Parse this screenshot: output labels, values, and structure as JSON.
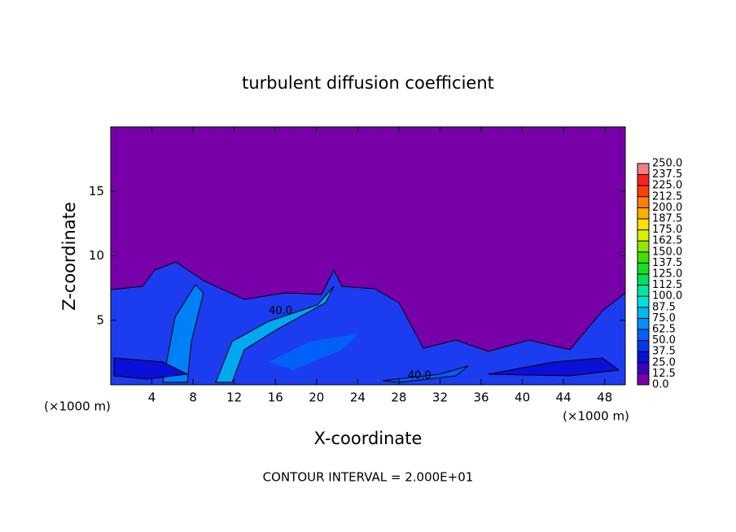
{
  "chart_data": {
    "type": "contour",
    "title": "turbulent diffusion coefficient",
    "xlabel": "X-coordinate",
    "ylabel": "Z-coordinate",
    "x_unit": "(×1000 m)",
    "x_unit_right": "(×1000 m)",
    "note": "CONTOUR INTERVAL = 2.000E+01",
    "xlim": [
      0,
      50
    ],
    "ylim": [
      0,
      20
    ],
    "xticks": [
      4,
      8,
      12,
      16,
      20,
      24,
      28,
      32,
      36,
      40,
      44,
      48
    ],
    "yticks": [
      5,
      10,
      15
    ],
    "contour_labels": {
      "values": [
        40,
        40
      ],
      "value_labels": [
        "40.0",
        "40.0"
      ]
    },
    "colorbar": {
      "levels": [
        {
          "value": 0,
          "label": "0.0"
        },
        {
          "value": 12.5,
          "label": "12.5"
        },
        {
          "value": 25,
          "label": "25.0"
        },
        {
          "value": 37.5,
          "label": "37.5"
        },
        {
          "value": 50,
          "label": "50.0"
        },
        {
          "value": 62.5,
          "label": "62.5"
        },
        {
          "value": 75,
          "label": "75.0"
        },
        {
          "value": 87.5,
          "label": "87.5"
        },
        {
          "value": 100,
          "label": "100.0"
        },
        {
          "value": 112.5,
          "label": "112.5"
        },
        {
          "value": 125,
          "label": "125.0"
        },
        {
          "value": 137.5,
          "label": "137.5"
        },
        {
          "value": 150,
          "label": "150.0"
        },
        {
          "value": 162.5,
          "label": "162.5"
        },
        {
          "value": 175,
          "label": "175.0"
        },
        {
          "value": 187.5,
          "label": "187.5"
        },
        {
          "value": 200,
          "label": "200.0"
        },
        {
          "value": 212.5,
          "label": "212.5"
        },
        {
          "value": 225,
          "label": "225.0"
        },
        {
          "value": 237.5,
          "label": "237.5"
        },
        {
          "value": 250,
          "label": "250.0"
        }
      ],
      "colors": [
        "#7800a8",
        "#3a00c0",
        "#0a10d8",
        "#0038f0",
        "#0060f8",
        "#0090f8",
        "#00b8f0",
        "#00e0e0",
        "#00e8a0",
        "#00e060",
        "#10e020",
        "#40e000",
        "#90e800",
        "#d8f000",
        "#ffe000",
        "#ffb000",
        "#ff8000",
        "#ff4000",
        "#ff2020",
        "#f08080"
      ]
    }
  }
}
